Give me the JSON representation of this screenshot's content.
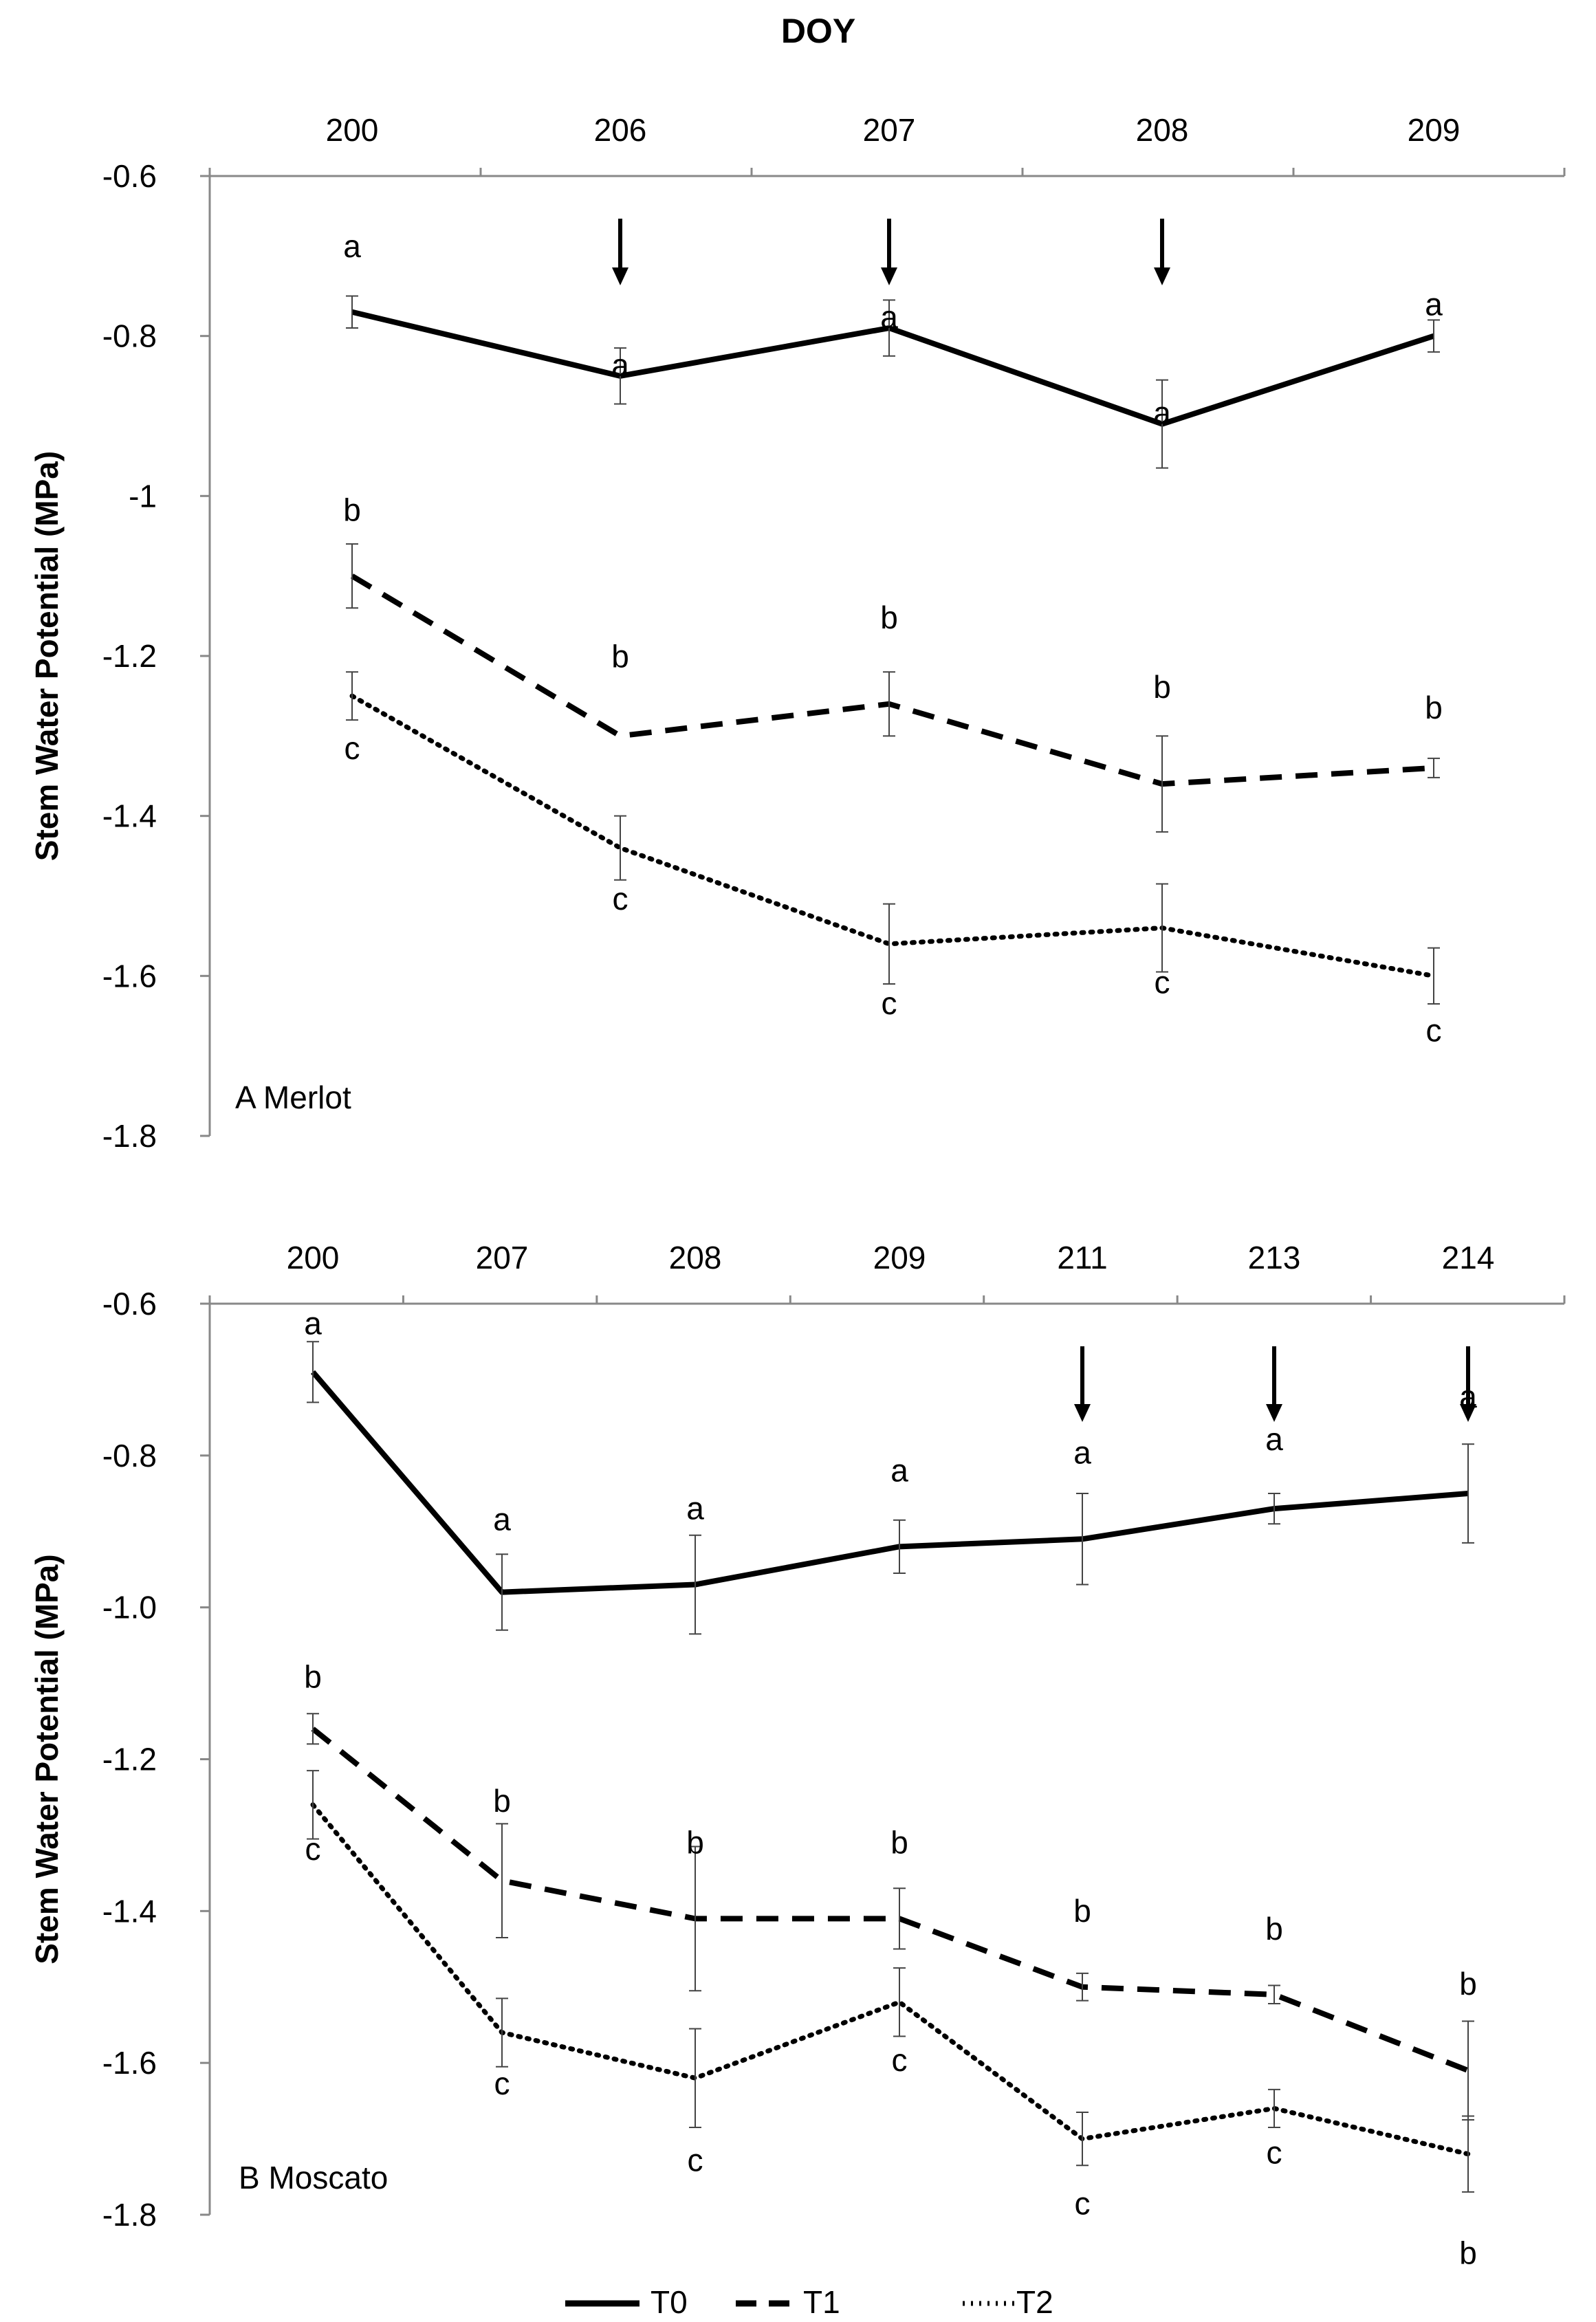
{
  "figure_title": "DOY",
  "legend": [
    {
      "name": "T0",
      "style": "solid"
    },
    {
      "name": "T1",
      "style": "dashed"
    },
    {
      "name": "T2",
      "style": "dotted"
    }
  ],
  "chart_data": [
    {
      "type": "line",
      "panel_label": "A Merlot",
      "xlabel": "DOY",
      "ylabel": "Stem Water Potential (MPa)",
      "categories": [
        "200",
        "206",
        "207",
        "208",
        "209"
      ],
      "y_ticks": [
        "-0.6",
        "-0.8",
        "-1",
        "-1.2",
        "-1.4",
        "-1.6",
        "-1.8"
      ],
      "ylim": [
        -1.8,
        -0.6
      ],
      "arrows_at": [
        "206",
        "207",
        "208"
      ],
      "series": [
        {
          "name": "T0",
          "style": "solid",
          "values": [
            -0.77,
            -0.85,
            -0.79,
            -0.91,
            -0.8
          ],
          "errors": [
            0.02,
            0.035,
            0.035,
            0.055,
            0.02
          ],
          "letters": [
            "a",
            "a",
            "a",
            "a",
            "a"
          ]
        },
        {
          "name": "T1",
          "style": "dashed",
          "values": [
            -1.1,
            -1.3,
            -1.26,
            -1.36,
            -1.34
          ],
          "errors": [
            0.04,
            0.0,
            0.04,
            0.06,
            0.012
          ],
          "letters": [
            "b",
            "b",
            "b",
            "b",
            "b"
          ]
        },
        {
          "name": "T2",
          "style": "dotted",
          "values": [
            -1.25,
            -1.44,
            -1.56,
            -1.54,
            -1.6
          ],
          "errors": [
            0.03,
            0.04,
            0.05,
            0.055,
            0.035
          ],
          "letters": [
            "c",
            "c",
            "c",
            "c",
            "c"
          ]
        }
      ]
    },
    {
      "type": "line",
      "panel_label": "B Moscato",
      "xlabel": "DOY",
      "ylabel": "Stem Water Potential (MPa)",
      "categories": [
        "200",
        "207",
        "208",
        "209",
        "211",
        "213",
        "214"
      ],
      "y_ticks": [
        "-0.6",
        "-0.8",
        "-1.0",
        "-1.2",
        "-1.4",
        "-1.6",
        "-1.8"
      ],
      "ylim": [
        -1.8,
        -0.6
      ],
      "arrows_at": [
        "211",
        "213",
        "214"
      ],
      "series": [
        {
          "name": "T0",
          "style": "solid",
          "values": [
            -0.69,
            -0.98,
            -0.97,
            -0.92,
            -0.91,
            -0.87,
            -0.85
          ],
          "errors": [
            0.04,
            0.05,
            0.065,
            0.035,
            0.06,
            0.02,
            0.065
          ],
          "letters": [
            "a",
            "a",
            "a",
            "a",
            "a",
            "a",
            "a"
          ]
        },
        {
          "name": "T1",
          "style": "dashed",
          "values": [
            -1.16,
            -1.36,
            -1.41,
            -1.41,
            -1.5,
            -1.51,
            -1.61
          ],
          "errors": [
            0.02,
            0.075,
            0.095,
            0.04,
            0.018,
            0.012,
            0.065
          ],
          "letters": [
            "b",
            "b",
            "b",
            "b",
            "b",
            "b",
            "b"
          ]
        },
        {
          "name": "T2",
          "style": "dotted",
          "values": [
            -1.26,
            -1.56,
            -1.62,
            -1.52,
            -1.7,
            -1.66,
            -1.72
          ],
          "errors": [
            0.045,
            0.045,
            0.065,
            0.045,
            0.035,
            0.025,
            0.05
          ],
          "letters": [
            "c",
            "c",
            "c",
            "c",
            "c",
            "c",
            "b"
          ]
        }
      ]
    }
  ]
}
